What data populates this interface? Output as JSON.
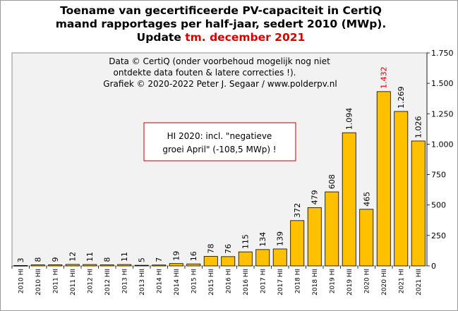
{
  "title": {
    "line1": "Toename van gecertificeerde PV-capaciteit in CertiQ",
    "line2": "maand rapportages per half-jaar, sedert 2010 (MWp).",
    "line3_prefix": "Update ",
    "line3_highlight": "tm. december 2021"
  },
  "credits": {
    "line1": "Data © CertiQ (onder voorbehoud mogelijk  nog niet",
    "line2": "ontdekte data fouten & latere correcties !).",
    "line3": "Grafiek  © 2020-2022 Peter J. Segaar / www.polderpv.nl"
  },
  "annotation": {
    "line1": "HI 2020:  incl. \"negatieve",
    "line2": "groei April\"  (-108,5 MWp)  !"
  },
  "colors": {
    "bar_fill": "#ffc000",
    "bar_stroke": "#000000",
    "plot_background": "#f2f2f2",
    "highlight_text": "#d40000",
    "annotation_border": "#c00000"
  },
  "chart_data": {
    "type": "bar",
    "categories": [
      "2010 HI",
      "2010 HII",
      "2011 HI",
      "2011 HII",
      "2012 HI",
      "2012 HII",
      "2013 HI",
      "2013 HII",
      "2014 HI",
      "2014 HII",
      "2015 HI",
      "2015 HII",
      "2016 HI",
      "2016 HII",
      "2017 HI",
      "2017 HII",
      "2018 HI",
      "2018 HII",
      "2019 HI",
      "2019 HII",
      "2020 HI",
      "2020 HII",
      "2021 HI",
      "2021 HII"
    ],
    "values": [
      3,
      8,
      9,
      12,
      11,
      8,
      11,
      5,
      7,
      19,
      16,
      78,
      76,
      115,
      134,
      139,
      372,
      479,
      608,
      1094,
      465,
      1432,
      1269,
      1026
    ],
    "value_labels": [
      "3",
      "8",
      "9",
      "12",
      "11",
      "8",
      "11",
      "5",
      "7",
      "19",
      "16",
      "78",
      "76",
      "115",
      "134",
      "139",
      "372",
      "479",
      "608",
      "1.094",
      "465",
      "1.432",
      "1.269",
      "1.026"
    ],
    "highlight_index": 21,
    "ylim": [
      0,
      1750
    ],
    "yticks": [
      0,
      250,
      500,
      750,
      1000,
      1250,
      1500,
      1750
    ],
    "ytick_labels": [
      "0",
      "250",
      "500",
      "750",
      "1.000",
      "1.250",
      "1.500",
      "1.750"
    ],
    "y_axis_side": "right",
    "grid": false,
    "legend": "none"
  }
}
